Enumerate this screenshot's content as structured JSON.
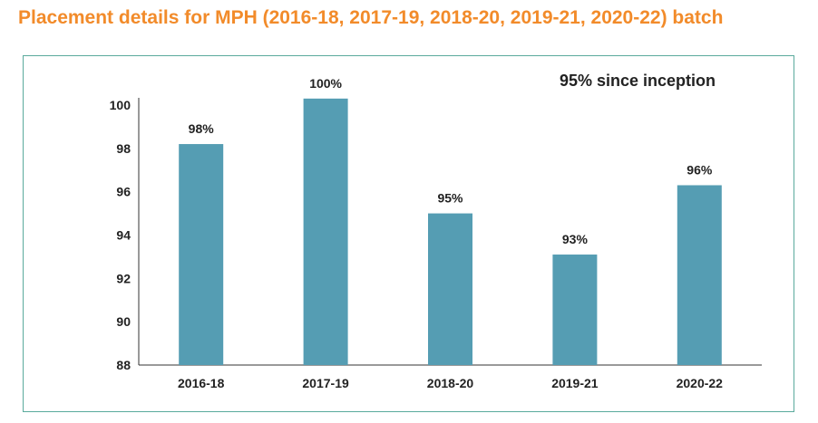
{
  "chart_data": {
    "type": "bar",
    "title": "Placement details for MPH (2016-18, 2017-19, 2018-20, 2019-21, 2020-22) batch",
    "annotation": "95% since inception",
    "categories": [
      "2016-18",
      "2017-19",
      "2018-20",
      "2019-21",
      "2020-22"
    ],
    "values": [
      98.2,
      100.3,
      95,
      93.1,
      96.3
    ],
    "data_labels": [
      "98%",
      "100%",
      "95%",
      "93%",
      "96%"
    ],
    "yticks": [
      "100",
      "98",
      "96",
      "94",
      "92",
      "90",
      "88"
    ],
    "ylim": [
      88,
      100
    ],
    "grid": false,
    "legend": "none"
  },
  "colors": {
    "title": "#f28b2a",
    "bar": "#559db3",
    "frame": "#5aaa9c",
    "axis": "#333333"
  }
}
